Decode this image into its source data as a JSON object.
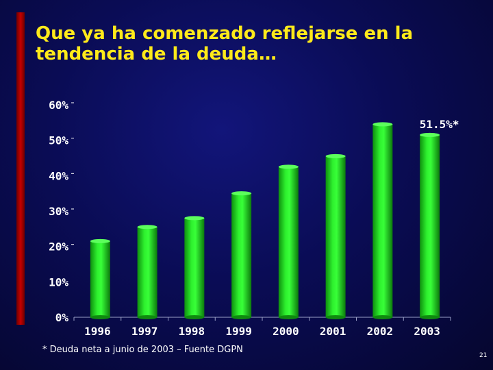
{
  "slide": {
    "title_line1": "Que ya ha comenzado reflejarse en la",
    "title_line2": "tendencia de la deuda…",
    "footnote": "* Deuda neta a junio de 2003 – Fuente DGPN",
    "page_number": "21"
  },
  "colors": {
    "background": "#0a0c55",
    "accent_bar": "#c40000",
    "title": "#ffea1a",
    "bar_fill": "#22dd22",
    "text": "#ffffff"
  },
  "chart_data": {
    "type": "bar",
    "title": "",
    "xlabel": "",
    "ylabel": "",
    "categories": [
      "1996",
      "1997",
      "1998",
      "1999",
      "2000",
      "2001",
      "2002",
      "2003"
    ],
    "values": [
      21.5,
      25.5,
      28,
      35,
      42.5,
      45.5,
      54.5,
      51.5
    ],
    "ylim": [
      0,
      60
    ],
    "y_ticks": [
      "0%",
      "10%",
      "20%",
      "30%",
      "40%",
      "50%",
      "60%"
    ],
    "annotation": "51.5%*",
    "grid": false,
    "legend": "none"
  }
}
